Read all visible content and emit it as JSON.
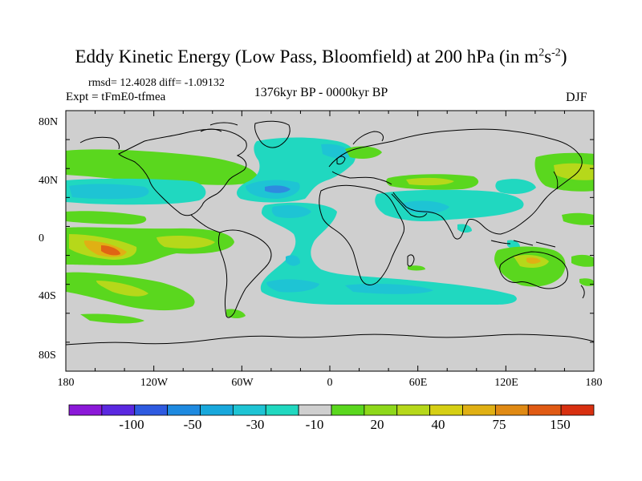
{
  "title": "Eddy Kinetic Energy (Low Pass, Bloomfield) at 200 hPa (in m",
  "title_units_sup1": "2",
  "title_units_mid": "s",
  "title_units_sup2": "-2",
  "title_end": ")",
  "stats": "rmsd= 12.4028 diff= -1.09132",
  "experiment": "Expt = tFmE0-tfmea",
  "period": "1376kyr BP - 0000kyr BP",
  "season": "DJF",
  "lat_labels": [
    "80N",
    "40N",
    "0",
    "40S",
    "80S"
  ],
  "lon_labels": [
    "180",
    "120W",
    "60W",
    "0",
    "60E",
    "120E",
    "180"
  ],
  "colorbar": {
    "colors": [
      "#8b18d8",
      "#5a28e0",
      "#2e5ae0",
      "#1e8ae0",
      "#18a8dc",
      "#1ec4d4",
      "#20d8c0",
      "#cfcfcf",
      "#5ad71e",
      "#8ed81a",
      "#b6d81a",
      "#d6cf14",
      "#e0b014",
      "#e08a14",
      "#e05a14",
      "#d83010"
    ],
    "tick_labels": [
      "-100",
      "-50",
      "-30",
      "-10",
      "20",
      "40",
      "75",
      "150"
    ]
  },
  "colors": {
    "land_missing": "#cfcfcf",
    "neg_strong": "#2e8ae0",
    "neg": "#1ec4d4",
    "neg_weak": "#20d8c0",
    "pos_weak": "#5ad71e",
    "pos": "#b6d81a",
    "pos_strong": "#e0b014",
    "pos_peak": "#e06414",
    "coast": "#000000"
  },
  "map_fields": [
    {
      "region": "mid-north Pacific",
      "sign": "positive",
      "level": "20"
    },
    {
      "region": "tropical east Pacific",
      "sign": "positive",
      "level": "75"
    },
    {
      "region": "north Atlantic",
      "sign": "negative",
      "level": "-30"
    },
    {
      "region": "south Atlantic",
      "sign": "negative",
      "level": "-30"
    },
    {
      "region": "southern Indian Ocean",
      "sign": "negative",
      "level": "-10"
    },
    {
      "region": "Mediterranean / Arabia",
      "sign": "positive",
      "level": "20"
    },
    {
      "region": "northwest Pacific",
      "sign": "positive",
      "level": "20"
    },
    {
      "region": "Australia",
      "sign": "positive",
      "level": "40"
    }
  ]
}
